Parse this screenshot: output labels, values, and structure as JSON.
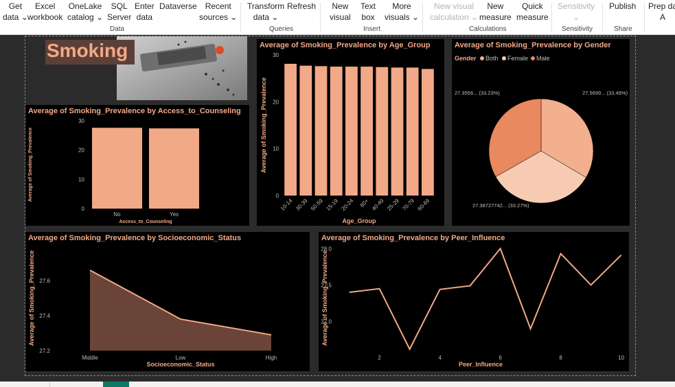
{
  "ribbon": {
    "buttons": [
      {
        "id": "get-data",
        "lines": [
          "Get",
          "data ⌄"
        ]
      },
      {
        "id": "excel-workbook",
        "lines": [
          "Excel",
          "workbook"
        ]
      },
      {
        "id": "onelake-catalog",
        "lines": [
          "OneLake",
          "catalog ⌄"
        ]
      },
      {
        "id": "sql-server",
        "lines": [
          "SQL",
          "Server"
        ]
      },
      {
        "id": "enter-data",
        "lines": [
          "Enter",
          "data"
        ]
      },
      {
        "id": "dataverse",
        "lines": [
          "Dataverse",
          ""
        ]
      },
      {
        "id": "recent-sources",
        "lines": [
          "Recent",
          "sources ⌄"
        ]
      },
      {
        "id": "transform-data",
        "lines": [
          "Transform",
          "data ⌄"
        ]
      },
      {
        "id": "refresh",
        "lines": [
          "Refresh",
          ""
        ]
      },
      {
        "id": "new-visual",
        "lines": [
          "New",
          "visual"
        ]
      },
      {
        "id": "text-box",
        "lines": [
          "Text",
          "box"
        ]
      },
      {
        "id": "more-visuals",
        "lines": [
          "More",
          "visuals ⌄"
        ]
      },
      {
        "id": "new-visual-calculation",
        "lines": [
          "New visual",
          "calculation ⌄"
        ],
        "disabled": true
      },
      {
        "id": "new-measure",
        "lines": [
          "New",
          "measure"
        ]
      },
      {
        "id": "quick-measure",
        "lines": [
          "Quick",
          "measure"
        ]
      },
      {
        "id": "sensitivity",
        "lines": [
          "Sensitivity",
          "⌄"
        ],
        "disabled": true
      },
      {
        "id": "publish",
        "lines": [
          "Publish",
          ""
        ]
      },
      {
        "id": "prep-data",
        "lines": [
          "Prep da",
          "A"
        ]
      }
    ],
    "groups": [
      "Data",
      "Queries",
      "Insert",
      "Calculations",
      "Sensitivity",
      "Share"
    ]
  },
  "banner": {
    "title": "Smoking"
  },
  "colors": {
    "accent": "#f2a987",
    "bar": "#f2a987",
    "bg": "#000000",
    "axis": "#bfbfbf",
    "pie_both": "#f2b08e",
    "pie_female": "#f7cbb2",
    "pie_male": "#e9895f"
  },
  "chart_data": [
    {
      "id": "counseling",
      "type": "bar",
      "title": "Average of Smoking_Prevalence by Access_to_Counseling",
      "xlabel": "Access_to_Counseling",
      "ylabel": "Average of Smoking_Prevalence",
      "categories": [
        "No",
        "Yes"
      ],
      "values": [
        27.6,
        27.4
      ],
      "ylim": [
        0,
        30
      ],
      "yticks": [
        "0",
        "10",
        "20",
        "30"
      ]
    },
    {
      "id": "age",
      "type": "bar",
      "title": "Average of Smoking_Prevalence by Age_Group",
      "xlabel": "Age_Group",
      "ylabel": "Average of Smoking_Prevalence",
      "categories": [
        "10-14",
        "30-39",
        "50-59",
        "15-19",
        "20-24",
        "80+",
        "40-49",
        "25-29",
        "70-79",
        "60-69"
      ],
      "values": [
        28.1,
        27.7,
        27.6,
        27.5,
        27.5,
        27.5,
        27.4,
        27.3,
        27.3,
        27.0
      ],
      "ylim": [
        0,
        30
      ],
      "yticks": [
        "0",
        "10",
        "20",
        "30"
      ]
    },
    {
      "id": "gender",
      "type": "pie",
      "title": "Average of Smoking_Prevalence by Gender",
      "legend_title": "Gender",
      "series": [
        {
          "name": "Both",
          "value": 27.5699,
          "label": "27.5699... (33.49%)"
        },
        {
          "name": "Female",
          "value": 27.38727742,
          "label": "27.38727742... (33.27%)"
        },
        {
          "name": "Male",
          "value": 27.3556,
          "label": "27.3556... (33.23%)"
        }
      ]
    },
    {
      "id": "socio",
      "type": "area",
      "title": "Average of Smoking_Prevalence by Socioeconomic_Status",
      "xlabel": "Socioeconomic_Status",
      "ylabel": "Average of Smoking_Prevalence",
      "categories": [
        "Middle",
        "Low",
        "High"
      ],
      "values": [
        27.66,
        27.38,
        27.29
      ],
      "ylim": [
        27.2,
        27.8
      ],
      "yticks": [
        "27.2",
        "27.4",
        "27.6"
      ]
    },
    {
      "id": "peer",
      "type": "line",
      "title": "Average of Smoking_Prevalence by Peer_Influence",
      "xlabel": "Peer_Influence",
      "ylabel": "Average of Smoking_Prevalence",
      "x": [
        1,
        2,
        3,
        4,
        5,
        6,
        7,
        8,
        9,
        10
      ],
      "values": [
        27.4,
        27.45,
        26.62,
        27.44,
        27.49,
        28.0,
        26.9,
        27.93,
        27.5,
        27.91
      ],
      "xlim": [
        0.6,
        10.1
      ],
      "ylim": [
        26.6,
        28.04
      ],
      "xticks": [
        "2",
        "4",
        "6",
        "8",
        "10"
      ],
      "yticks": [
        "27.0",
        "27.5",
        "28.0"
      ]
    }
  ]
}
